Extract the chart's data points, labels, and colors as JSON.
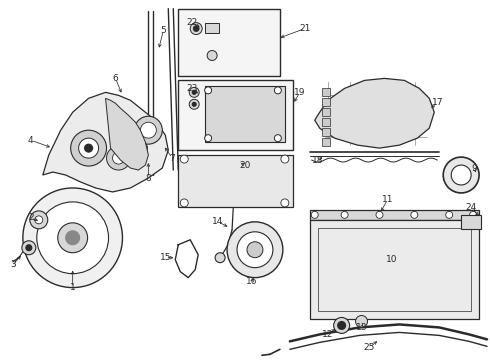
{
  "bg_color": "#ffffff",
  "fig_width": 4.9,
  "fig_height": 3.6,
  "dpi": 100,
  "line_color": "#2a2a2a",
  "light_gray": "#aaaaaa",
  "fill_gray": "#d8d8d8",
  "label_fs": 6.5
}
